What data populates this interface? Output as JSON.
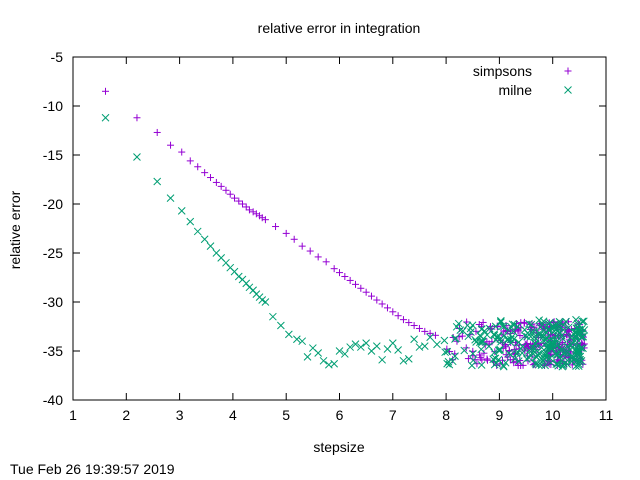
{
  "chart_data": {
    "type": "scatter",
    "title": "relative error in integration",
    "xlabel": "stepsize",
    "ylabel": "relative error",
    "xlim": [
      1,
      11
    ],
    "ylim": [
      -40,
      -5
    ],
    "xticks": [
      "1",
      "2",
      "3",
      "4",
      "5",
      "6",
      "7",
      "8",
      "9",
      "10",
      "11"
    ],
    "yticks": [
      "-5",
      "-10",
      "-15",
      "-20",
      "-25",
      "-30",
      "-35",
      "-40"
    ],
    "legend_position": "top-right",
    "timestamp": "Tue Feb 26 19:39:57 2019",
    "series": [
      {
        "name": "simpsons",
        "marker": "plus",
        "color": "#9400d3",
        "points": [
          [
            1.61,
            -8.5
          ],
          [
            2.2,
            -11.2
          ],
          [
            2.58,
            -12.7
          ],
          [
            2.83,
            -14.0
          ],
          [
            3.04,
            -14.7
          ],
          [
            3.2,
            -15.6
          ],
          [
            3.34,
            -16.2
          ],
          [
            3.47,
            -16.8
          ],
          [
            3.58,
            -17.3
          ],
          [
            3.69,
            -17.8
          ],
          [
            3.78,
            -18.2
          ],
          [
            3.87,
            -18.6
          ],
          [
            3.95,
            -19.0
          ],
          [
            4.03,
            -19.4
          ],
          [
            4.11,
            -19.7
          ],
          [
            4.18,
            -20.0
          ],
          [
            4.25,
            -20.3
          ],
          [
            4.31,
            -20.6
          ],
          [
            4.38,
            -20.8
          ],
          [
            4.44,
            -21.0
          ],
          [
            4.5,
            -21.2
          ],
          [
            4.55,
            -21.4
          ],
          [
            4.61,
            -21.6
          ],
          [
            4.8,
            -22.3
          ],
          [
            5.0,
            -23.0
          ],
          [
            5.15,
            -23.6
          ],
          [
            5.3,
            -24.3
          ],
          [
            5.45,
            -24.8
          ],
          [
            5.6,
            -25.4
          ],
          [
            5.75,
            -25.9
          ],
          [
            5.9,
            -26.6
          ],
          [
            6.0,
            -27.0
          ],
          [
            6.1,
            -27.4
          ],
          [
            6.2,
            -27.8
          ],
          [
            6.3,
            -28.2
          ],
          [
            6.4,
            -28.6
          ],
          [
            6.5,
            -29.0
          ],
          [
            6.6,
            -29.4
          ],
          [
            6.7,
            -29.8
          ],
          [
            6.8,
            -30.2
          ],
          [
            6.9,
            -30.6
          ],
          [
            7.0,
            -31.0
          ],
          [
            7.1,
            -31.4
          ],
          [
            7.2,
            -31.8
          ],
          [
            7.3,
            -32.1
          ],
          [
            7.4,
            -32.4
          ],
          [
            7.5,
            -32.7
          ],
          [
            7.6,
            -33.0
          ],
          [
            7.7,
            -33.2
          ],
          [
            7.8,
            -33.4
          ]
        ],
        "band": {
          "x_range": [
            7.8,
            10.6
          ],
          "y_range": [
            -36.5,
            -32.0
          ],
          "count": 260
        }
      },
      {
        "name": "milne",
        "marker": "cross",
        "color": "#009e73",
        "points": [
          [
            1.61,
            -11.2
          ],
          [
            2.2,
            -15.2
          ],
          [
            2.58,
            -17.7
          ],
          [
            2.83,
            -19.4
          ],
          [
            3.04,
            -20.7
          ],
          [
            3.2,
            -21.8
          ],
          [
            3.34,
            -22.8
          ],
          [
            3.47,
            -23.6
          ],
          [
            3.58,
            -24.3
          ],
          [
            3.69,
            -25.0
          ],
          [
            3.78,
            -25.5
          ],
          [
            3.87,
            -26.0
          ],
          [
            3.95,
            -26.5
          ],
          [
            4.03,
            -26.9
          ],
          [
            4.11,
            -27.4
          ],
          [
            4.18,
            -27.7
          ],
          [
            4.25,
            -28.1
          ],
          [
            4.31,
            -28.5
          ],
          [
            4.38,
            -28.8
          ],
          [
            4.44,
            -29.2
          ],
          [
            4.5,
            -29.5
          ],
          [
            4.55,
            -29.8
          ],
          [
            4.61,
            -30.0
          ],
          [
            4.75,
            -31.5
          ],
          [
            4.9,
            -32.4
          ],
          [
            5.05,
            -33.3
          ],
          [
            5.2,
            -33.8
          ],
          [
            5.3,
            -34.0
          ],
          [
            5.4,
            -35.6
          ],
          [
            5.5,
            -34.7
          ],
          [
            5.6,
            -35.2
          ],
          [
            5.7,
            -36.0
          ],
          [
            5.8,
            -36.4
          ],
          [
            5.9,
            -36.3
          ],
          [
            6.0,
            -35.0
          ],
          [
            6.1,
            -35.3
          ],
          [
            6.2,
            -34.6
          ],
          [
            6.3,
            -34.3
          ],
          [
            6.4,
            -34.6
          ],
          [
            6.5,
            -34.2
          ],
          [
            6.6,
            -35.0
          ],
          [
            6.7,
            -34.5
          ],
          [
            6.8,
            -35.9
          ],
          [
            6.9,
            -34.8
          ],
          [
            7.0,
            -34.2
          ],
          [
            7.1,
            -34.9
          ],
          [
            7.2,
            -36.0
          ],
          [
            7.3,
            -35.8
          ],
          [
            7.4,
            -33.8
          ],
          [
            7.5,
            -34.6
          ],
          [
            7.6,
            -34.5
          ],
          [
            7.7,
            -33.6
          ]
        ],
        "band": {
          "x_range": [
            7.7,
            10.6
          ],
          "y_range": [
            -36.6,
            -31.8
          ],
          "count": 260
        }
      }
    ]
  }
}
